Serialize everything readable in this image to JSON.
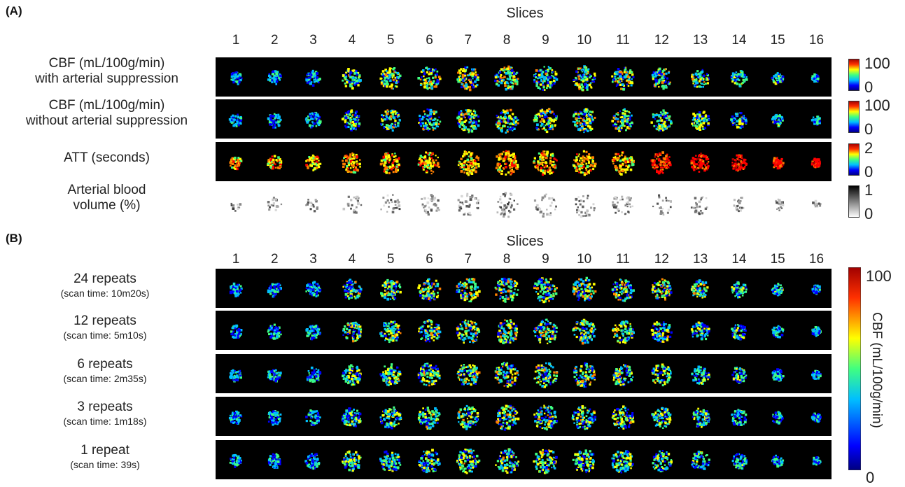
{
  "panel_a": {
    "label": "(A)",
    "slices_title": "Slices",
    "slice_numbers": [
      "1",
      "2",
      "3",
      "4",
      "5",
      "6",
      "7",
      "8",
      "9",
      "10",
      "11",
      "12",
      "13",
      "14",
      "15",
      "16"
    ],
    "rows": [
      {
        "line1": "CBF (mL/100g/min)",
        "line2": "with arterial suppression",
        "map": "jet",
        "cb_max": "100",
        "cb_min": "0"
      },
      {
        "line1": "CBF (mL/100g/min)",
        "line2": "without arterial suppression",
        "map": "jet",
        "cb_max": "100",
        "cb_min": "0"
      },
      {
        "line1": "ATT (seconds)",
        "line2": "",
        "map": "jet-high",
        "cb_max": "2",
        "cb_min": "0"
      },
      {
        "line1": "Arterial blood",
        "line2": "volume (%)",
        "map": "gray",
        "cb_max": "1",
        "cb_min": "0"
      }
    ]
  },
  "panel_b": {
    "label": "(B)",
    "slices_title": "Slices",
    "slice_numbers": [
      "1",
      "2",
      "3",
      "4",
      "5",
      "6",
      "7",
      "8",
      "9",
      "10",
      "11",
      "12",
      "13",
      "14",
      "15",
      "16"
    ],
    "rows": [
      {
        "main": "24 repeats",
        "sub": "(scan time: 10m20s)"
      },
      {
        "main": "12 repeats",
        "sub": "(scan time: 5m10s)"
      },
      {
        "main": "6 repeats",
        "sub": "(scan time: 2m35s)"
      },
      {
        "main": "3 repeats",
        "sub": "(scan time: 1m18s)"
      },
      {
        "main": "1 repeat",
        "sub": "(scan time: 39s)"
      }
    ],
    "colorbar": {
      "max": "100",
      "min": "0",
      "title": "CBF (mL/100g/min)"
    }
  },
  "colors": {
    "jet": [
      "#00007f",
      "#0000ff",
      "#00bfff",
      "#40ff80",
      "#ffff00",
      "#ff7f00",
      "#ff0000",
      "#a00000"
    ],
    "gray": [
      "#ffffff",
      "#000000"
    ]
  }
}
